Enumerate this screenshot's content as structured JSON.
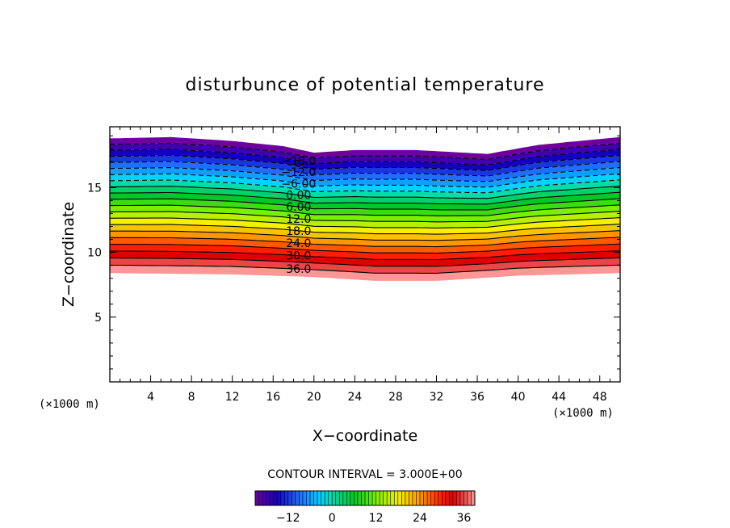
{
  "chart_data": {
    "type": "contour",
    "title": "disturbunce of potential temperature",
    "xlabel": "X−coordinate",
    "ylabel": "Z−coordinate",
    "x_unit": "(×1000 m)",
    "y_unit": "(×1000 m)",
    "xlim": [
      0,
      50
    ],
    "ylim": [
      0,
      19.7
    ],
    "x_ticks": [
      4,
      8,
      12,
      16,
      20,
      24,
      28,
      32,
      36,
      40,
      44,
      48
    ],
    "y_ticks": [
      5,
      10,
      15
    ],
    "contour_interval_text": "CONTOUR INTERVAL = 3.000E+00",
    "contour_interval": 3.0,
    "negative_contours_dashed": true,
    "contour_labels": [
      "−18.0",
      "−12.0",
      "−6.00",
      "0.00",
      "6.00",
      "12.0",
      "18.0",
      "24.0",
      "30.0",
      "36.0"
    ],
    "levels": [
      -21,
      -18,
      -15,
      -12,
      -9,
      -6,
      -3,
      0,
      3,
      6,
      9,
      12,
      15,
      18,
      21,
      24,
      27,
      30,
      33,
      36,
      39
    ],
    "field_top_z": [
      {
        "x": 0,
        "z": 18.8
      },
      {
        "x": 6,
        "z": 18.9
      },
      {
        "x": 12,
        "z": 18.6
      },
      {
        "x": 17,
        "z": 18.2
      },
      {
        "x": 20,
        "z": 17.7
      },
      {
        "x": 24,
        "z": 17.9
      },
      {
        "x": 30,
        "z": 17.9
      },
      {
        "x": 37,
        "z": 17.6
      },
      {
        "x": 42,
        "z": 18.3
      },
      {
        "x": 50,
        "z": 18.9
      }
    ],
    "field_bottom_z": [
      {
        "x": 0,
        "z": 8.4
      },
      {
        "x": 12,
        "z": 8.3
      },
      {
        "x": 20,
        "z": 8.1
      },
      {
        "x": 26,
        "z": 7.8
      },
      {
        "x": 32,
        "z": 7.8
      },
      {
        "x": 40,
        "z": 8.2
      },
      {
        "x": 50,
        "z": 8.4
      }
    ],
    "colorbar": {
      "min": -21,
      "max": 39,
      "tick_labels": [
        "−12",
        "0",
        "12",
        "24",
        "36"
      ],
      "tick_values": [
        -12,
        0,
        12,
        24,
        36
      ]
    }
  }
}
